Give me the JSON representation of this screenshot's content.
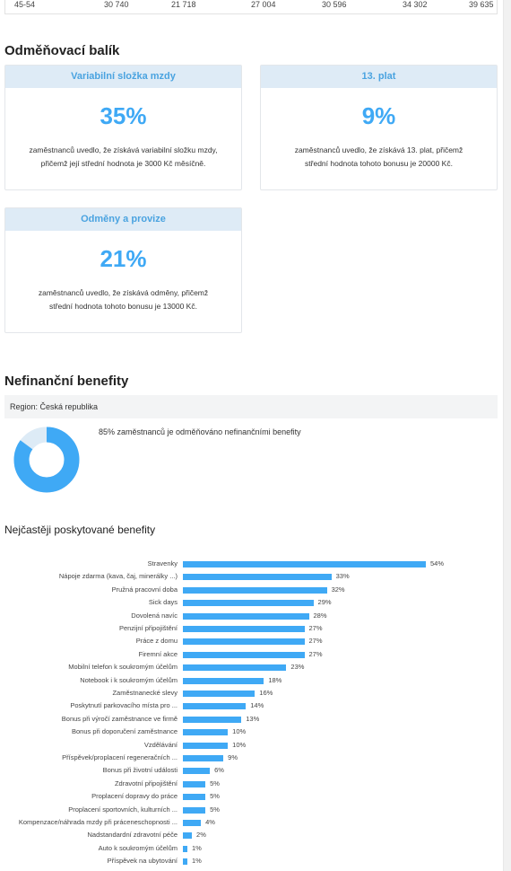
{
  "top_row": [
    "45-54",
    "30 740",
    "21 718",
    "27 004",
    "30 596",
    "34 302",
    "39 635"
  ],
  "reward": {
    "title": "Odměňovací balík",
    "cards": [
      {
        "header": "Variabilní složka mzdy",
        "pct": "35%",
        "line1": "zaměstnanců uvedlo, že získává variabilní složku mzdy,",
        "line2": "přičemž její střední hodnota je 3000 Kč měsíčně."
      },
      {
        "header": "13. plat",
        "pct": "9%",
        "line1": "zaměstnanců uvedlo, že získává 13. plat, přičemž",
        "line2": "střední hodnota tohoto bonusu je 20000 Kč."
      },
      {
        "header": "Odměny a provize",
        "pct": "21%",
        "line1": "zaměstnanců uvedlo, že získává odměny, přičemž",
        "line2": "střední hodnota tohoto bonusu je 13000 Kč."
      }
    ]
  },
  "benefits": {
    "title": "Nefinanční benefity",
    "region": "Region: Česká republika",
    "donut_share": 85,
    "donut_text": "85% zaměstnanců je odměňováno nefinančními benefity",
    "colors": {
      "main": "#3fa9f5",
      "rest": "#ddebf6"
    }
  },
  "chart_data": {
    "type": "bar",
    "title": "Nejčastěji poskytované benefity",
    "orientation": "horizontal",
    "xlim": [
      0,
      54
    ],
    "categories": [
      "Stravenky",
      "Nápoje zdarma (kava, čaj, minerálky ...)",
      "Pružná pracovní doba",
      "Sick days",
      "Dovolená navíc",
      "Penzijní připojištění",
      "Práce z domu",
      "Firemní akce",
      "Mobilní telefon k soukromým účelům",
      "Notebook i k soukromým účelům",
      "Zaměstnanecké slevy",
      "Poskytnutí parkovacího místa pro ...",
      "Bonus při výročí zaměstnance ve firmě",
      "Bonus při doporučení zaměstnance",
      "Vzdělávání",
      "Příspěvek/proplacení regeneračních ...",
      "Bonus při životní události",
      "Zdravotní připojištění",
      "Proplacení dopravy do práce",
      "Proplacení sportovních, kulturních ...",
      "Kompenzace/náhrada mzdy při práceneschopnosti ...",
      "Nadstandardní zdravotní péče",
      "Auto k soukromým účelům",
      "Příspěvek na ubytování"
    ],
    "values": [
      54,
      33,
      32,
      29,
      28,
      27,
      27,
      27,
      23,
      18,
      16,
      14,
      13,
      10,
      10,
      9,
      6,
      5,
      5,
      5,
      4,
      2,
      1,
      1
    ],
    "value_labels": [
      "54%",
      "33%",
      "32%",
      "29%",
      "28%",
      "27%",
      "27%",
      "27%",
      "23%",
      "18%",
      "16%",
      "14%",
      "13%",
      "10%",
      "10%",
      "9%",
      "6%",
      "5%",
      "5%",
      "5%",
      "4%",
      "2%",
      "1%",
      "1%"
    ]
  }
}
